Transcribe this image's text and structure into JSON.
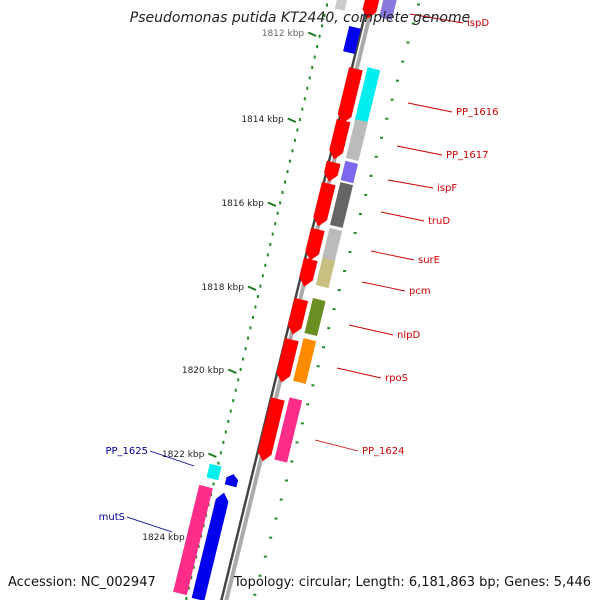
{
  "title": "Pseudomonas putida KT2440, complete genome",
  "accession": "Accession: NC_002947",
  "topology": "Topology: circular; Length: 6,181,863 bp; Genes: 5,446",
  "ruler_ticks": [
    {
      "label": "1812 kbp",
      "pos": 1812
    },
    {
      "label": "1814 kbp",
      "pos": 1814
    },
    {
      "label": "1816 kbp",
      "pos": 1816
    },
    {
      "label": "1818 kbp",
      "pos": 1818
    },
    {
      "label": "1820 kbp",
      "pos": 1820
    },
    {
      "label": "1822 kbp",
      "pos": 1822
    },
    {
      "label": "1824 kbp",
      "pos": 1824
    }
  ],
  "genes_reverse": [
    {
      "name": "ispD",
      "color": "#ff0000"
    },
    {
      "name": "PP_1616",
      "color": "#ff0000"
    },
    {
      "name": "PP_1617",
      "color": "#ff0000"
    },
    {
      "name": "ispF",
      "color": "#ff0000"
    },
    {
      "name": "truD",
      "color": "#ff0000"
    },
    {
      "name": "surE",
      "color": "#ff0000"
    },
    {
      "name": "pcm",
      "color": "#ff0000"
    },
    {
      "name": "nlpD",
      "color": "#ff0000"
    },
    {
      "name": "rpoS",
      "color": "#ff0000"
    },
    {
      "name": "PP_1624",
      "color": "#ff0000"
    }
  ],
  "genes_forward": [
    {
      "name": "PP_1625",
      "color": "#0000ff"
    },
    {
      "name": "mutS",
      "color": "#0000ff"
    }
  ],
  "cog_colors": {
    "ispD": "#8877dd",
    "PP_1616": "#00eeee",
    "PP_1617": "#bbbbbb",
    "ispF": "#7b68ee",
    "truD": "#666666",
    "surE": "#bbbbbb",
    "pcm": "#c8c080",
    "nlpD": "#6b8e23",
    "rpoS": "#ff8c00",
    "PP_1624": "#ff2d8a",
    "PP_1625": "#00eeee",
    "mutS": "#ff2d8a"
  },
  "label_colors": {
    "reverse": "#cc0000",
    "forward": "#000099"
  }
}
